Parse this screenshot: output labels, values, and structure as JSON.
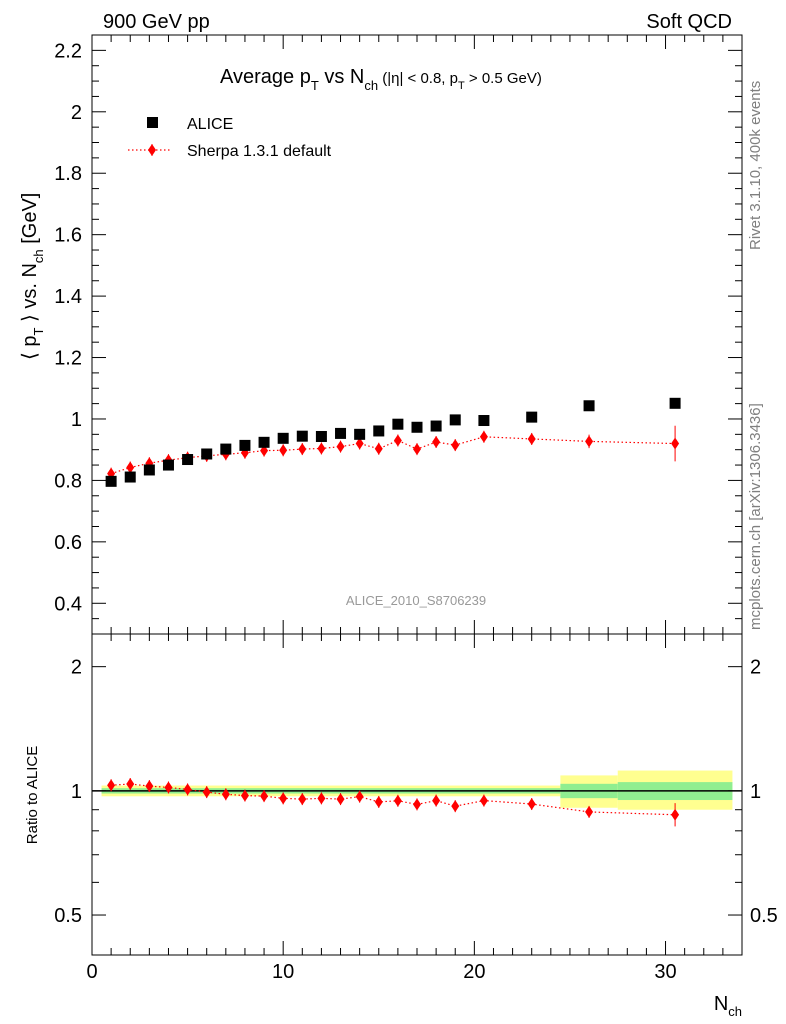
{
  "header": {
    "left": "900 GeV pp",
    "right": "Soft QCD",
    "side_top": "Rivet 3.1.10,  400k events",
    "side_bottom": "mcplots.cern.ch [arXiv:1306.3436]"
  },
  "chart_data": [
    {
      "type": "scatter",
      "panel": "main",
      "title": {
        "base": "Average p",
        "sub_t": "T",
        "vs": " vs N",
        "sub_ch": "ch",
        "cut_open": " (|η| < 0.8, p",
        "cut_sub": "T",
        "cut_close": " > 0.5 GeV)"
      },
      "ylabel": {
        "base": "⟨ p",
        "sub_t": "T",
        "mid": " ⟩ vs. N",
        "sub_ch": "ch",
        "unit": " [GeV]"
      },
      "analysis_label": "ALICE_2010_S8706239",
      "xlim": [
        0,
        34
      ],
      "ylim": [
        0.3,
        2.25
      ],
      "yticks": [
        "0.4",
        "0.6",
        "0.8",
        "1",
        "1.2",
        "1.4",
        "1.6",
        "1.8",
        "2",
        "2.2"
      ],
      "series": [
        {
          "name": "ALICE",
          "marker": "square",
          "color": "#000000",
          "points": [
            {
              "x": 1,
              "y": 0.797
            },
            {
              "x": 2,
              "y": 0.811
            },
            {
              "x": 3,
              "y": 0.834
            },
            {
              "x": 4,
              "y": 0.85
            },
            {
              "x": 5,
              "y": 0.868
            },
            {
              "x": 6,
              "y": 0.886
            },
            {
              "x": 7,
              "y": 0.902
            },
            {
              "x": 8,
              "y": 0.914
            },
            {
              "x": 9,
              "y": 0.924
            },
            {
              "x": 10,
              "y": 0.937
            },
            {
              "x": 11,
              "y": 0.944
            },
            {
              "x": 12,
              "y": 0.943
            },
            {
              "x": 13,
              "y": 0.953
            },
            {
              "x": 14,
              "y": 0.95
            },
            {
              "x": 15,
              "y": 0.961
            },
            {
              "x": 16,
              "y": 0.983
            },
            {
              "x": 17,
              "y": 0.973
            },
            {
              "x": 18,
              "y": 0.977
            },
            {
              "x": 19,
              "y": 0.997
            },
            {
              "x": 20.5,
              "y": 0.995
            },
            {
              "x": 23,
              "y": 1.006
            },
            {
              "x": 26,
              "y": 1.043
            },
            {
              "x": 30.5,
              "y": 1.051
            }
          ]
        },
        {
          "name": "Sherpa 1.3.1 default",
          "marker": "diamond",
          "line": "dotted",
          "color": "#ff0000",
          "points": [
            {
              "x": 1,
              "y": 0.822,
              "err": 0.008
            },
            {
              "x": 2,
              "y": 0.842,
              "err": 0.008
            },
            {
              "x": 3,
              "y": 0.856,
              "err": 0.008
            },
            {
              "x": 4,
              "y": 0.866,
              "err": 0.008
            },
            {
              "x": 5,
              "y": 0.874,
              "err": 0.008
            },
            {
              "x": 6,
              "y": 0.88,
              "err": 0.008
            },
            {
              "x": 7,
              "y": 0.885,
              "err": 0.008
            },
            {
              "x": 8,
              "y": 0.89,
              "err": 0.008
            },
            {
              "x": 9,
              "y": 0.897,
              "err": 0.008
            },
            {
              "x": 10,
              "y": 0.898,
              "err": 0.008
            },
            {
              "x": 11,
              "y": 0.902,
              "err": 0.008
            },
            {
              "x": 12,
              "y": 0.904,
              "err": 0.008
            },
            {
              "x": 13,
              "y": 0.91,
              "err": 0.01
            },
            {
              "x": 14,
              "y": 0.92,
              "err": 0.01
            },
            {
              "x": 15,
              "y": 0.903,
              "err": 0.012
            },
            {
              "x": 16,
              "y": 0.93,
              "err": 0.012
            },
            {
              "x": 17,
              "y": 0.902,
              "err": 0.013
            },
            {
              "x": 18,
              "y": 0.925,
              "err": 0.013
            },
            {
              "x": 19,
              "y": 0.915,
              "err": 0.014
            },
            {
              "x": 20.5,
              "y": 0.942,
              "err": 0.012
            },
            {
              "x": 23,
              "y": 0.935,
              "err": 0.014
            },
            {
              "x": 26,
              "y": 0.927,
              "err": 0.022
            },
            {
              "x": 30.5,
              "y": 0.92,
              "err": 0.058
            }
          ]
        }
      ]
    },
    {
      "type": "scatter",
      "panel": "ratio",
      "ylabel": "Ratio to ALICE",
      "xlabel": {
        "base": "N",
        "sub": "ch"
      },
      "xlim": [
        0,
        34
      ],
      "ylim": [
        0.4,
        2.4
      ],
      "yscale": "log",
      "xticks": [
        "0",
        "10",
        "20",
        "30"
      ],
      "yticks": [
        "0.5",
        "1",
        "2"
      ],
      "bands": [
        {
          "x0": 0.5,
          "x1": 24.5,
          "inner": [
            0.985,
            1.015
          ],
          "outer": [
            0.97,
            1.03
          ]
        },
        {
          "x0": 24.5,
          "x1": 27.5,
          "inner": [
            0.96,
            1.04
          ],
          "outer": [
            0.91,
            1.09
          ]
        },
        {
          "x0": 27.5,
          "x1": 33.5,
          "inner": [
            0.95,
            1.05
          ],
          "outer": [
            0.9,
            1.12
          ]
        }
      ],
      "band_colors": {
        "inner": "#90ee90",
        "outer": "#ffff90"
      },
      "series": [
        {
          "name": "Sherpa 1.3.1 default",
          "color": "#ff0000",
          "points": [
            {
              "x": 1,
              "y": 1.032,
              "err": 0.012
            },
            {
              "x": 2,
              "y": 1.039,
              "err": 0.012
            },
            {
              "x": 3,
              "y": 1.027,
              "err": 0.012
            },
            {
              "x": 4,
              "y": 1.019,
              "err": 0.012
            },
            {
              "x": 5,
              "y": 1.008,
              "err": 0.012
            },
            {
              "x": 6,
              "y": 0.993,
              "err": 0.012
            },
            {
              "x": 7,
              "y": 0.981,
              "err": 0.012
            },
            {
              "x": 8,
              "y": 0.974,
              "err": 0.012
            },
            {
              "x": 9,
              "y": 0.971,
              "err": 0.012
            },
            {
              "x": 10,
              "y": 0.959,
              "err": 0.012
            },
            {
              "x": 11,
              "y": 0.955,
              "err": 0.012
            },
            {
              "x": 12,
              "y": 0.959,
              "err": 0.012
            },
            {
              "x": 13,
              "y": 0.955,
              "err": 0.012
            },
            {
              "x": 14,
              "y": 0.968,
              "err": 0.012
            },
            {
              "x": 15,
              "y": 0.94,
              "err": 0.012
            },
            {
              "x": 16,
              "y": 0.946,
              "err": 0.012
            },
            {
              "x": 17,
              "y": 0.927,
              "err": 0.013
            },
            {
              "x": 18,
              "y": 0.947,
              "err": 0.013
            },
            {
              "x": 19,
              "y": 0.918,
              "err": 0.014
            },
            {
              "x": 20.5,
              "y": 0.947,
              "err": 0.012
            },
            {
              "x": 23,
              "y": 0.929,
              "err": 0.014
            },
            {
              "x": 26,
              "y": 0.889,
              "err": 0.021
            },
            {
              "x": 30.5,
              "y": 0.875,
              "err": 0.055
            }
          ]
        }
      ]
    }
  ]
}
